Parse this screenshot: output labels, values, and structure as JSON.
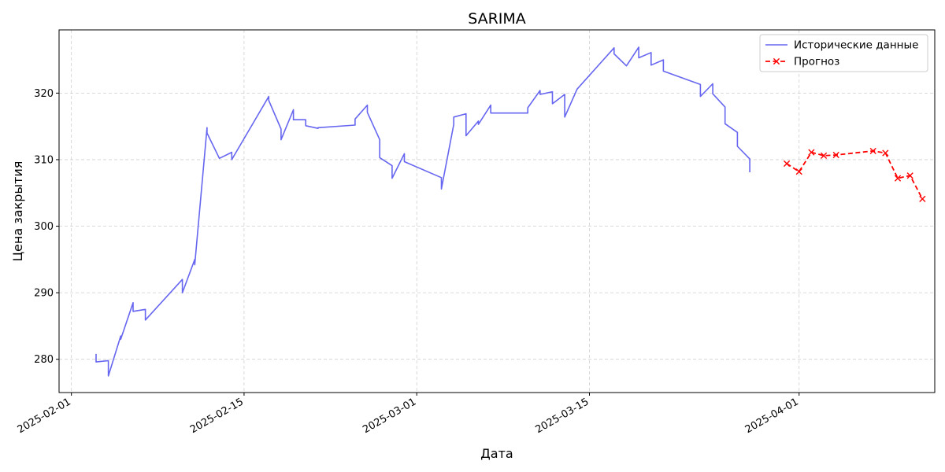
{
  "chart_data": {
    "type": "line",
    "title": "SARIMA",
    "xlabel": "Дата",
    "ylabel": "Цена закрытия",
    "xlim": [
      "2025-01-31",
      "2025-04-12"
    ],
    "ylim": [
      275,
      329.5
    ],
    "x_ticks": [
      "2025-02-01",
      "2025-02-15",
      "2025-03-01",
      "2025-03-15",
      "2025-04-01"
    ],
    "y_ticks": [
      280,
      290,
      300,
      310,
      320
    ],
    "grid": true,
    "legend_position": "top-right",
    "series": [
      {
        "name": "Исторические данные",
        "color": "#6666f0",
        "style": "solid",
        "marker": "none",
        "points": [
          [
            "2025-02-03",
            280.8
          ],
          [
            "2025-02-03",
            279.6
          ],
          [
            "2025-02-04",
            279.8
          ],
          [
            "2025-02-04",
            277.5
          ],
          [
            "2025-02-05",
            283.5
          ],
          [
            "2025-02-05",
            283.0
          ],
          [
            "2025-02-06",
            288.5
          ],
          [
            "2025-02-06",
            287.2
          ],
          [
            "2025-02-07",
            287.5
          ],
          [
            "2025-02-07",
            285.9
          ],
          [
            "2025-02-10",
            292.0
          ],
          [
            "2025-02-10",
            290.0
          ],
          [
            "2025-02-11",
            295.0
          ],
          [
            "2025-02-11",
            294.2
          ],
          [
            "2025-02-12",
            314.8
          ],
          [
            "2025-02-12",
            314.0
          ],
          [
            "2025-02-13",
            310.2
          ],
          [
            "2025-02-14",
            311.1
          ],
          [
            "2025-02-14",
            310.0
          ],
          [
            "2025-02-17",
            319.5
          ],
          [
            "2025-02-17",
            318.9
          ],
          [
            "2025-02-18",
            314.6
          ],
          [
            "2025-02-18",
            313.0
          ],
          [
            "2025-02-19",
            317.5
          ],
          [
            "2025-02-19",
            316.0
          ],
          [
            "2025-02-20",
            316.0
          ],
          [
            "2025-02-20",
            315.1
          ],
          [
            "2025-02-21",
            314.7
          ],
          [
            "2025-02-21",
            314.8
          ],
          [
            "2025-02-24",
            315.2
          ],
          [
            "2025-02-24",
            316.1
          ],
          [
            "2025-02-25",
            318.2
          ],
          [
            "2025-02-25",
            317.1
          ],
          [
            "2025-02-26",
            313.0
          ],
          [
            "2025-02-26",
            310.3
          ],
          [
            "2025-02-27",
            309.1
          ],
          [
            "2025-02-27",
            307.2
          ],
          [
            "2025-02-28",
            310.9
          ],
          [
            "2025-02-28",
            309.7
          ],
          [
            "2025-03-03",
            307.3
          ],
          [
            "2025-03-03",
            305.6
          ],
          [
            "2025-03-04",
            315.3
          ],
          [
            "2025-03-04",
            316.4
          ],
          [
            "2025-03-05",
            316.9
          ],
          [
            "2025-03-05",
            313.6
          ],
          [
            "2025-03-06",
            315.8
          ],
          [
            "2025-03-06",
            315.3
          ],
          [
            "2025-03-07",
            318.2
          ],
          [
            "2025-03-07",
            317.0
          ],
          [
            "2025-03-10",
            317.0
          ],
          [
            "2025-03-10",
            317.8
          ],
          [
            "2025-03-11",
            320.4
          ],
          [
            "2025-03-11",
            319.8
          ],
          [
            "2025-03-12",
            320.2
          ],
          [
            "2025-03-12",
            318.4
          ],
          [
            "2025-03-13",
            319.8
          ],
          [
            "2025-03-13",
            316.4
          ],
          [
            "2025-03-14",
            320.6
          ],
          [
            "2025-03-17",
            326.8
          ],
          [
            "2025-03-17",
            325.9
          ],
          [
            "2025-03-18",
            324.1
          ],
          [
            "2025-03-19",
            326.9
          ],
          [
            "2025-03-19",
            325.3
          ],
          [
            "2025-03-20",
            326.1
          ],
          [
            "2025-03-20",
            324.2
          ],
          [
            "2025-03-21",
            325.0
          ],
          [
            "2025-03-21",
            323.3
          ],
          [
            "2025-03-24",
            321.3
          ],
          [
            "2025-03-24",
            319.5
          ],
          [
            "2025-03-25",
            321.4
          ],
          [
            "2025-03-25",
            319.9
          ],
          [
            "2025-03-26",
            317.9
          ],
          [
            "2025-03-26",
            315.4
          ],
          [
            "2025-03-27",
            314.1
          ],
          [
            "2025-03-27",
            312.0
          ],
          [
            "2025-03-28",
            310.1
          ],
          [
            "2025-03-28",
            308.1
          ]
        ]
      },
      {
        "name": "Прогноз",
        "color": "#ff0000",
        "style": "dashed",
        "marker": "x",
        "points": [
          [
            "2025-03-31",
            309.4
          ],
          [
            "2025-04-01",
            308.2
          ],
          [
            "2025-04-02",
            311.1
          ],
          [
            "2025-04-03",
            310.6
          ],
          [
            "2025-04-04",
            310.7
          ],
          [
            "2025-04-07",
            311.3
          ],
          [
            "2025-04-08",
            311.0
          ],
          [
            "2025-04-09",
            307.2
          ],
          [
            "2025-04-10",
            307.6
          ],
          [
            "2025-04-11",
            304.1
          ]
        ]
      }
    ]
  }
}
